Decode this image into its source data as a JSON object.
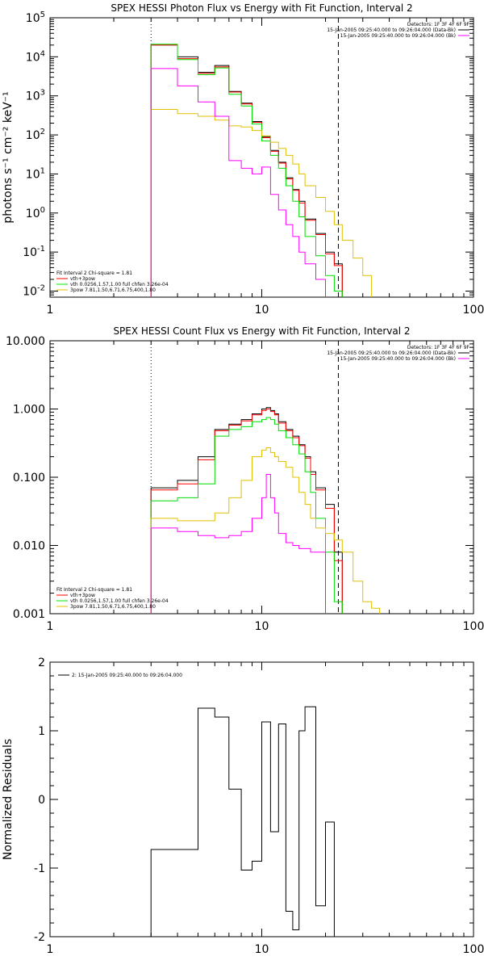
{
  "chart_data": [
    {
      "type": "line",
      "title": "SPEX HESSI Photon Flux vs Energy with Fit Function, Interval 2",
      "ylabel": "photons s⁻¹ cm⁻² keV⁻¹",
      "xlabel": "",
      "xscale": "log",
      "yscale": "log",
      "xlim": [
        1,
        100
      ],
      "ylim": [
        0.007,
        100000
      ],
      "x_ticks": [
        "1",
        "10",
        "100"
      ],
      "y_ticks": [
        {
          "v": 0.01,
          "b": "10",
          "e": "-2"
        },
        {
          "v": 0.1,
          "b": "10",
          "e": "-1"
        },
        {
          "v": 1,
          "b": "10",
          "e": "0"
        },
        {
          "v": 10,
          "b": "10",
          "e": "1"
        },
        {
          "v": 100,
          "b": "10",
          "e": "2"
        },
        {
          "v": 1000,
          "b": "10",
          "e": "3"
        },
        {
          "v": 10000,
          "b": "10",
          "e": "4"
        },
        {
          "v": 100000,
          "b": "10",
          "e": "5"
        }
      ],
      "vlines": [
        {
          "x": 3.0,
          "style": "dotted"
        },
        {
          "x": 23.0,
          "style": "dashed"
        }
      ],
      "legend_left": {
        "title": "Fit Interval 2   Chi-square = 1.81",
        "entries": [
          {
            "label": "vth+3pow",
            "color": "#ff0000"
          },
          {
            "label": "vth 0.0256,1.57,1.00  full chfen 3.26e-04",
            "color": "#00ee00"
          },
          {
            "label": "3pow 7.81,1.50,6.71,6.75,400,1.80",
            "color": "#e0c000"
          }
        ]
      },
      "legend_right": {
        "title": "Detectors: 1F 3F 4F 6F 9F",
        "entries": [
          {
            "label": "15-Jan-2005 09:25:40.000 to 09:26:04.000 (Data-Bk)",
            "color": "#000000"
          },
          {
            "label": "15-Jan-2005 09:25:40.000 to 09:26:04.000 (Bk)",
            "color": "#ff00ff"
          }
        ]
      },
      "series": [
        {
          "color": "#000000",
          "edges": [
            3.0,
            4.0,
            5.0,
            6.0,
            7.0,
            8.0,
            9.0,
            10.0,
            11.0,
            12.0,
            13.0,
            14.0,
            15.0,
            16.0,
            18.0,
            20.0,
            22.0,
            24.0
          ],
          "values": [
            20000,
            10000,
            4000,
            6000,
            1300,
            650,
            220,
            90,
            40,
            20,
            8,
            4,
            2,
            0.7,
            0.3,
            0.1,
            0.05
          ]
        },
        {
          "color": "#ff0000",
          "edges": [
            3.0,
            4.0,
            5.0,
            6.0,
            7.0,
            8.0,
            9.0,
            10.0,
            11.0,
            12.0,
            13.0,
            14.0,
            15.0,
            16.0,
            18.0,
            20.0,
            22.0,
            24.0
          ],
          "values": [
            20000,
            9000,
            3800,
            5500,
            1250,
            620,
            210,
            85,
            38,
            19,
            7.5,
            3.8,
            1.8,
            0.65,
            0.28,
            0.09,
            0.045
          ]
        },
        {
          "color": "#00dd00",
          "edges": [
            3.0,
            4.0,
            5.0,
            6.0,
            7.0,
            8.0,
            9.0,
            10.0,
            11.0,
            12.0,
            13.0,
            14.0,
            15.0,
            16.0,
            18.0,
            20.0,
            22.0,
            24.0
          ],
          "values": [
            21000,
            8500,
            3500,
            5200,
            1100,
            550,
            190,
            70,
            30,
            14,
            5,
            2,
            0.8,
            0.25,
            0.08,
            0.025,
            0.01
          ]
        },
        {
          "color": "#e0c000",
          "edges": [
            3.0,
            4.0,
            5.0,
            6.0,
            7.0,
            8.0,
            9.0,
            10.0,
            11.0,
            12.0,
            13.0,
            14.0,
            15.0,
            16.0,
            18.0,
            20.0,
            22.0,
            24.0,
            27.0,
            30.0,
            33.0
          ],
          "values": [
            450,
            350,
            300,
            240,
            170,
            160,
            130,
            95,
            65,
            45,
            30,
            18,
            10,
            5,
            2.5,
            1.1,
            0.5,
            0.2,
            0.07,
            0.025
          ]
        },
        {
          "color": "#ff00ff",
          "edges": [
            3.0,
            4.0,
            5.0,
            6.0,
            7.0,
            8.0,
            9.0,
            10.0,
            11.0,
            12.0,
            13.0,
            14.0,
            15.0,
            16.0,
            18.0,
            20.0
          ],
          "values": [
            5000,
            1800,
            700,
            300,
            22,
            14,
            10,
            15,
            3,
            1.2,
            0.5,
            0.25,
            0.1,
            0.05,
            0.02
          ]
        }
      ]
    },
    {
      "type": "line",
      "title": "SPEX HESSI Count Flux vs Energy with Fit Function, Interval 2",
      "ylabel": "",
      "xlabel": "",
      "xscale": "log",
      "yscale": "log",
      "xlim": [
        1,
        100
      ],
      "ylim": [
        0.001,
        10
      ],
      "x_ticks": [
        "1",
        "10",
        "100"
      ],
      "y_ticks": [
        {
          "v": 0.001,
          "t": "0.001"
        },
        {
          "v": 0.01,
          "t": "0.010"
        },
        {
          "v": 0.1,
          "t": "0.100"
        },
        {
          "v": 1,
          "t": "1.000"
        },
        {
          "v": 10,
          "t": "10.000"
        }
      ],
      "vlines": [
        {
          "x": 3.0,
          "style": "dotted"
        },
        {
          "x": 23.0,
          "style": "dashed"
        }
      ],
      "legend_left": {
        "title": "Fit Interval 2   Chi-square = 1.81",
        "entries": [
          {
            "label": "vth+3pow",
            "color": "#ff0000"
          },
          {
            "label": "vth 0.0256,1.57,1.00  full chfen 3.26e-04",
            "color": "#00ee00"
          },
          {
            "label": "3pow 7.81,1.50,6.71,6.75,400,1.80",
            "color": "#e0c000"
          }
        ]
      },
      "legend_right": {
        "title": "Detectors: 1F 3F 4F 6F 9F",
        "entries": [
          {
            "label": "15-Jan-2005 09:25:40.000 to 09:26:04.000 (Data-Bk)",
            "color": "#000000"
          },
          {
            "label": "15-Jan-2005 09:25:40.000 to 09:26:04.000 (Bk)",
            "color": "#ff00ff"
          }
        ]
      },
      "series": [
        {
          "color": "#000000",
          "edges": [
            3.0,
            4.0,
            5.0,
            6.0,
            7.0,
            8.0,
            9.0,
            10.0,
            10.5,
            11.0,
            11.5,
            12.0,
            13.0,
            14.0,
            15.0,
            16.0,
            17.0,
            18.0,
            20.0,
            22.0,
            24.0
          ],
          "values": [
            0.07,
            0.09,
            0.2,
            0.5,
            0.6,
            0.7,
            0.85,
            1.0,
            1.05,
            0.95,
            0.85,
            0.65,
            0.5,
            0.4,
            0.3,
            0.2,
            0.12,
            0.07,
            0.04,
            0.008
          ]
        },
        {
          "color": "#ff0000",
          "edges": [
            3.0,
            4.0,
            5.0,
            6.0,
            7.0,
            8.0,
            9.0,
            10.0,
            10.5,
            11.0,
            11.5,
            12.0,
            13.0,
            14.0,
            15.0,
            16.0,
            17.0,
            18.0,
            20.0,
            22.0,
            24.0
          ],
          "values": [
            0.065,
            0.08,
            0.18,
            0.48,
            0.58,
            0.67,
            0.82,
            0.95,
            1.0,
            0.92,
            0.82,
            0.62,
            0.48,
            0.38,
            0.29,
            0.19,
            0.11,
            0.065,
            0.035,
            0.006
          ]
        },
        {
          "color": "#00dd00",
          "edges": [
            3.0,
            4.0,
            5.0,
            6.0,
            7.0,
            8.0,
            9.0,
            10.0,
            10.5,
            11.0,
            11.5,
            12.0,
            13.0,
            14.0,
            15.0,
            16.0,
            17.0,
            18.0,
            20.0,
            22.0,
            24.0
          ],
          "values": [
            0.045,
            0.05,
            0.08,
            0.4,
            0.5,
            0.55,
            0.65,
            0.7,
            0.75,
            0.7,
            0.6,
            0.48,
            0.38,
            0.3,
            0.22,
            0.12,
            0.06,
            0.025,
            0.008,
            0.0015
          ]
        },
        {
          "color": "#e0c000",
          "edges": [
            3.0,
            4.0,
            5.0,
            6.0,
            7.0,
            8.0,
            9.0,
            10.0,
            10.5,
            11.0,
            11.5,
            12.0,
            13.0,
            14.0,
            15.0,
            16.0,
            17.0,
            18.0,
            20.0,
            22.0,
            24.0,
            27.0,
            30.0,
            33.0,
            36.0
          ],
          "values": [
            0.025,
            0.023,
            0.023,
            0.03,
            0.05,
            0.09,
            0.2,
            0.25,
            0.27,
            0.23,
            0.2,
            0.17,
            0.14,
            0.1,
            0.06,
            0.04,
            0.025,
            0.018,
            0.015,
            0.012,
            0.008,
            0.003,
            0.0015,
            0.0012
          ]
        },
        {
          "color": "#ff00ff",
          "edges": [
            3.0,
            4.0,
            5.0,
            6.0,
            7.0,
            8.0,
            9.0,
            10.0,
            10.5,
            11.0,
            11.5,
            12.0,
            13.0,
            14.0,
            15.0,
            16.0,
            17.0,
            18.0,
            20.0
          ],
          "values": [
            0.018,
            0.016,
            0.014,
            0.013,
            0.014,
            0.016,
            0.025,
            0.05,
            0.11,
            0.05,
            0.03,
            0.015,
            0.011,
            0.01,
            0.009,
            0.009,
            0.008,
            0.008
          ]
        }
      ]
    },
    {
      "type": "line",
      "title": "",
      "ylabel": "Normalized Residuals",
      "xlabel": "",
      "xscale": "log",
      "yscale": "linear",
      "xlim": [
        1,
        100
      ],
      "ylim": [
        -2,
        2
      ],
      "x_ticks": [
        "1",
        "10",
        "100"
      ],
      "y_ticks": [
        {
          "v": -2,
          "t": "-2"
        },
        {
          "v": -1,
          "t": "-1"
        },
        {
          "v": 0,
          "t": "0"
        },
        {
          "v": 1,
          "t": "1"
        },
        {
          "v": 2,
          "t": "2"
        }
      ],
      "legend_right": null,
      "legend_left": {
        "title": "",
        "entries": [
          {
            "label": "2: 15-Jan-2005 09:25:40.000 to 09:26:04.000",
            "color": "#000000"
          }
        ]
      },
      "series": [
        {
          "color": "#000000",
          "edges": [
            3.0,
            4.0,
            5.0,
            6.0,
            7.0,
            8.0,
            9.0,
            10.0,
            11.0,
            12.0,
            13.0,
            14.0,
            15.0,
            16.0,
            18.0,
            20.0,
            22.0,
            24.0
          ],
          "values": [
            -0.73,
            -0.73,
            1.33,
            1.2,
            0.15,
            -1.03,
            -0.9,
            1.13,
            -0.47,
            1.1,
            -1.63,
            -1.9,
            1.0,
            1.35,
            -1.55,
            -0.33,
            -2.0
          ]
        }
      ]
    }
  ]
}
